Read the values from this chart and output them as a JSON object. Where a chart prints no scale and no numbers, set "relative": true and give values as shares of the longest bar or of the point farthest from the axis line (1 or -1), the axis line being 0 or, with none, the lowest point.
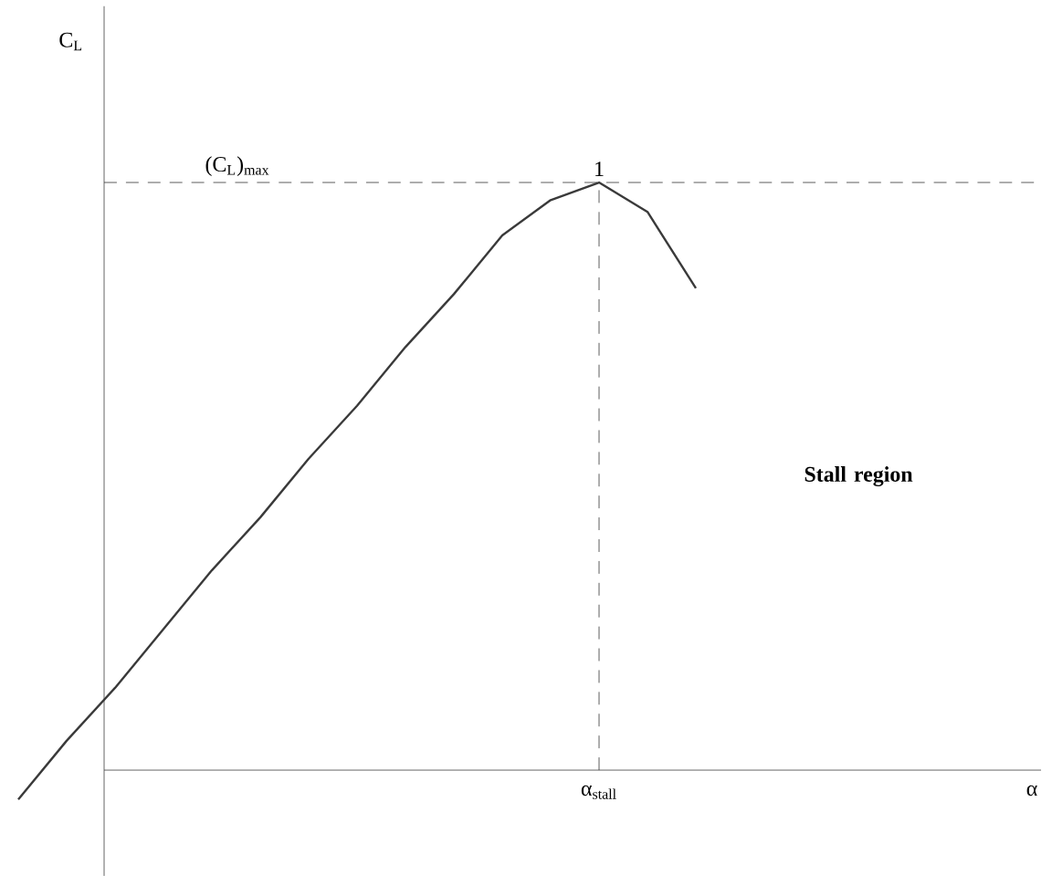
{
  "chart_data": {
    "type": "line",
    "relative": true,
    "categories": [
      null,
      null,
      null,
      null,
      null,
      null,
      null,
      null,
      null,
      null,
      null,
      null,
      null,
      null,
      null
    ],
    "series": [
      {
        "color": "#3a3a3a",
        "values": [
          -0.05,
          0.05,
          0.14,
          0.24,
          0.34,
          0.43,
          0.53,
          0.62,
          0.72,
          0.81,
          0.91,
          0.97,
          1,
          0.95,
          0.82
        ]
      }
    ],
    "ref_lines": [
      {
        "axis": "x",
        "label": "α$_{stall}$",
        "line_style": "dashed"
      },
      {
        "axis": "y",
        "label": "(C$_{L}$)$_{max}$",
        "line_style": "dashed"
      }
    ],
    "annotations": [
      "Stall region",
      {
        "text": "1",
        "y": 1
      },
      "α",
      "C$_{L}$"
    ]
  }
}
